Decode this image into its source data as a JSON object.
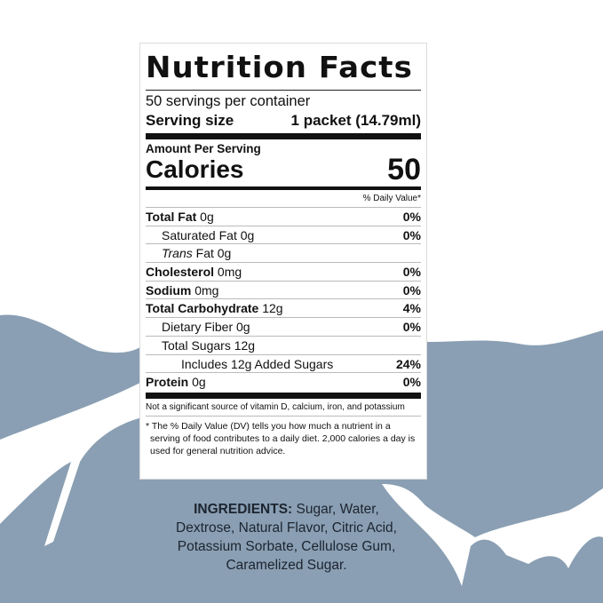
{
  "colors": {
    "background_blue": "#8a9fb3",
    "white": "#ffffff",
    "text": "#111111"
  },
  "label": {
    "title": "Nutrition Facts",
    "servings_per_container": "50 servings per container",
    "serving_size_label": "Serving size",
    "serving_size_value": "1 packet (14.79ml)",
    "amount_per_serving": "Amount Per Serving",
    "calories_label": "Calories",
    "calories_value": "50",
    "dv_header": "% Daily Value*",
    "rows": [
      {
        "name": "Total Fat",
        "amount": " 0g",
        "dv": "0%"
      },
      {
        "name": "Saturated Fat 0g",
        "amount": "",
        "dv": "0%"
      },
      {
        "name": "Trans",
        "amount": " Fat 0g",
        "dv": ""
      },
      {
        "name": "Cholesterol",
        "amount": " 0mg",
        "dv": "0%"
      },
      {
        "name": "Sodium",
        "amount": " 0mg",
        "dv": "0%"
      },
      {
        "name": "Total Carbohydrate",
        "amount": " 12g",
        "dv": "4%"
      },
      {
        "name": "Dietary Fiber 0g",
        "amount": "",
        "dv": "0%"
      },
      {
        "name": "Total Sugars 12g",
        "amount": "",
        "dv": ""
      },
      {
        "name": "Includes 12g Added Sugars",
        "amount": "",
        "dv": "24%"
      },
      {
        "name": "Protein",
        "amount": " 0g",
        "dv": "0%"
      }
    ],
    "note": "Not a significant source of vitamin D, calcium, iron, and potassium",
    "footnote": "* The % Daily Value (DV) tells you how much a nutrient in a serving of food contributes to a daily diet. 2,000 calories a day is used for general nutrition advice."
  },
  "ingredients": {
    "heading": "INGREDIENTS:",
    "text": " Sugar, Water, Dextrose, Natural Flavor, Citric Acid, Potassium Sorbate, Cellulose Gum, Caramelized Sugar."
  }
}
